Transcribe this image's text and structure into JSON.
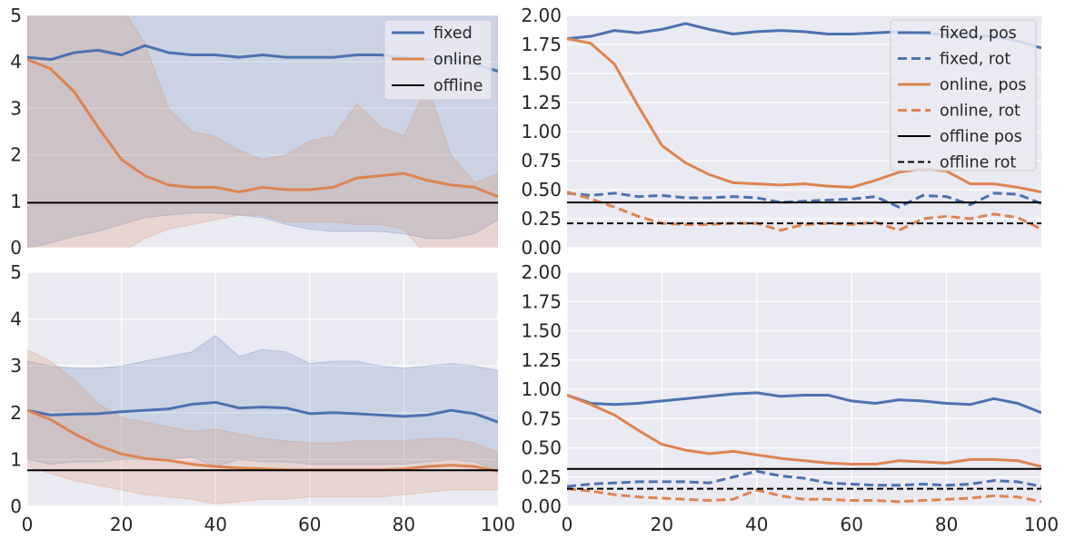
{
  "chart_data": [
    {
      "type": "line",
      "panel": "top-left",
      "xlim": [
        0,
        100
      ],
      "ylim": [
        0,
        5
      ],
      "yticks": [
        "0",
        "1",
        "2",
        "3",
        "4",
        "5"
      ],
      "xticks": [],
      "grid": true,
      "legend_position": "top-right",
      "series": [
        {
          "name": "fixed",
          "color": "#4c72b0",
          "style": "solid",
          "x": [
            0,
            5,
            10,
            15,
            20,
            25,
            30,
            35,
            40,
            45,
            50,
            55,
            60,
            65,
            70,
            75,
            80,
            85,
            90,
            95,
            100
          ],
          "values": [
            4.1,
            4.05,
            4.2,
            4.25,
            4.15,
            4.35,
            4.2,
            4.15,
            4.15,
            4.1,
            4.15,
            4.1,
            4.1,
            4.1,
            4.15,
            4.15,
            4.1,
            4.05,
            4.05,
            3.95,
            3.8
          ],
          "band_upper": [
            5.2,
            5.2,
            5.2,
            5.2,
            5.2,
            5.2,
            5.2,
            5.2,
            5.2,
            5.2,
            5.2,
            5.2,
            5.2,
            5.2,
            5.2,
            5.2,
            5.2,
            5.2,
            5.2,
            5.2,
            5.2
          ],
          "band_lower": [
            0.0,
            0.1,
            0.25,
            0.35,
            0.5,
            0.65,
            0.7,
            0.75,
            0.75,
            0.7,
            0.65,
            0.5,
            0.4,
            0.35,
            0.35,
            0.35,
            0.3,
            0.2,
            0.2,
            0.3,
            0.6
          ]
        },
        {
          "name": "online",
          "color": "#dd8452",
          "style": "solid",
          "x": [
            0,
            5,
            10,
            15,
            20,
            25,
            30,
            35,
            40,
            45,
            50,
            55,
            60,
            65,
            70,
            75,
            80,
            85,
            90,
            95,
            100
          ],
          "values": [
            4.05,
            3.85,
            3.35,
            2.6,
            1.9,
            1.55,
            1.35,
            1.3,
            1.3,
            1.2,
            1.3,
            1.25,
            1.25,
            1.3,
            1.5,
            1.55,
            1.6,
            1.45,
            1.35,
            1.3,
            1.1
          ],
          "band_upper": [
            5.2,
            5.2,
            5.2,
            5.2,
            5.2,
            4.4,
            3.0,
            2.5,
            2.4,
            2.1,
            1.9,
            2.0,
            2.3,
            2.4,
            3.1,
            2.6,
            2.4,
            3.5,
            2.0,
            1.4,
            1.6
          ],
          "band_lower": [
            -0.2,
            -0.2,
            -0.2,
            -0.2,
            -0.1,
            0.2,
            0.4,
            0.5,
            0.6,
            0.7,
            0.7,
            0.55,
            0.55,
            0.55,
            0.5,
            0.5,
            0.4,
            -0.2,
            -0.2,
            -0.2,
            -0.2
          ]
        },
        {
          "name": "offline",
          "color": "#000000",
          "style": "solid",
          "x": [
            0,
            100
          ],
          "values": [
            0.97,
            0.97
          ]
        }
      ]
    },
    {
      "type": "line",
      "panel": "top-right",
      "xlim": [
        0,
        100
      ],
      "ylim": [
        0,
        2
      ],
      "yticks": [
        "0.00",
        "0.25",
        "0.50",
        "0.75",
        "1.00",
        "1.25",
        "1.50",
        "1.75",
        "2.00"
      ],
      "xticks": [],
      "grid": true,
      "legend_position": "top-right",
      "series": [
        {
          "name": "fixed, pos",
          "color": "#4c72b0",
          "style": "solid",
          "x": [
            0,
            5,
            10,
            15,
            20,
            25,
            30,
            35,
            40,
            45,
            50,
            55,
            60,
            65,
            70,
            75,
            80,
            85,
            90,
            95,
            100
          ],
          "values": [
            1.8,
            1.82,
            1.87,
            1.85,
            1.88,
            1.93,
            1.88,
            1.84,
            1.86,
            1.87,
            1.86,
            1.84,
            1.84,
            1.85,
            1.86,
            1.85,
            1.83,
            1.82,
            1.82,
            1.78,
            1.72
          ]
        },
        {
          "name": "fixed, rot",
          "color": "#4c72b0",
          "style": "dashed",
          "x": [
            0,
            5,
            10,
            15,
            20,
            25,
            30,
            35,
            40,
            45,
            50,
            55,
            60,
            65,
            70,
            75,
            80,
            85,
            90,
            95,
            100
          ],
          "values": [
            0.47,
            0.45,
            0.47,
            0.44,
            0.45,
            0.43,
            0.43,
            0.44,
            0.43,
            0.39,
            0.4,
            0.41,
            0.42,
            0.44,
            0.35,
            0.45,
            0.44,
            0.37,
            0.47,
            0.46,
            0.38
          ]
        },
        {
          "name": "online, pos",
          "color": "#dd8452",
          "style": "solid",
          "x": [
            0,
            5,
            10,
            15,
            20,
            25,
            30,
            35,
            40,
            45,
            50,
            55,
            60,
            65,
            70,
            75,
            80,
            85,
            90,
            95,
            100
          ],
          "values": [
            1.8,
            1.76,
            1.58,
            1.22,
            0.88,
            0.73,
            0.63,
            0.56,
            0.55,
            0.54,
            0.55,
            0.53,
            0.52,
            0.58,
            0.65,
            0.68,
            0.66,
            0.55,
            0.55,
            0.52,
            0.48
          ]
        },
        {
          "name": "online, rot",
          "color": "#dd8452",
          "style": "dashed",
          "x": [
            0,
            5,
            10,
            15,
            20,
            25,
            30,
            35,
            40,
            45,
            50,
            55,
            60,
            65,
            70,
            75,
            80,
            85,
            90,
            95,
            100
          ],
          "values": [
            0.48,
            0.42,
            0.35,
            0.27,
            0.21,
            0.2,
            0.2,
            0.21,
            0.21,
            0.15,
            0.2,
            0.21,
            0.2,
            0.22,
            0.15,
            0.25,
            0.27,
            0.25,
            0.29,
            0.26,
            0.16
          ]
        },
        {
          "name": "offline pos",
          "color": "#000000",
          "style": "solid",
          "x": [
            0,
            100
          ],
          "values": [
            0.39,
            0.39
          ]
        },
        {
          "name": "offline rot",
          "color": "#000000",
          "style": "dashed",
          "x": [
            0,
            100
          ],
          "values": [
            0.21,
            0.21
          ]
        }
      ]
    },
    {
      "type": "line",
      "panel": "bottom-left",
      "xlim": [
        0,
        100
      ],
      "ylim": [
        0,
        5
      ],
      "yticks": [
        "0",
        "1",
        "2",
        "3",
        "4",
        "5"
      ],
      "xticks": [
        "0",
        "20",
        "40",
        "60",
        "80",
        "100"
      ],
      "grid": true,
      "series": [
        {
          "name": "fixed",
          "color": "#4c72b0",
          "style": "solid",
          "x": [
            0,
            5,
            10,
            15,
            20,
            25,
            30,
            35,
            40,
            45,
            50,
            55,
            60,
            65,
            70,
            75,
            80,
            85,
            90,
            95,
            100
          ],
          "values": [
            2.05,
            1.95,
            1.97,
            1.98,
            2.02,
            2.05,
            2.08,
            2.18,
            2.22,
            2.1,
            2.12,
            2.1,
            1.98,
            2.0,
            1.98,
            1.95,
            1.92,
            1.95,
            2.05,
            1.98,
            1.8
          ],
          "band_upper": [
            3.1,
            3.0,
            2.95,
            2.95,
            3.0,
            3.1,
            3.2,
            3.3,
            3.65,
            3.2,
            3.35,
            3.3,
            3.05,
            3.1,
            3.1,
            3.0,
            2.95,
            3.0,
            3.05,
            3.0,
            2.9
          ],
          "band_lower": [
            1.0,
            0.9,
            0.95,
            0.95,
            1.0,
            1.0,
            1.0,
            1.05,
            0.85,
            1.0,
            0.95,
            0.95,
            0.9,
            0.9,
            0.9,
            0.9,
            0.9,
            0.95,
            1.0,
            0.95,
            0.75
          ]
        },
        {
          "name": "online",
          "color": "#dd8452",
          "style": "solid",
          "x": [
            0,
            5,
            10,
            15,
            20,
            25,
            30,
            35,
            40,
            45,
            50,
            55,
            60,
            65,
            70,
            75,
            80,
            85,
            90,
            95,
            100
          ],
          "values": [
            2.05,
            1.85,
            1.55,
            1.3,
            1.12,
            1.02,
            0.98,
            0.9,
            0.85,
            0.82,
            0.8,
            0.78,
            0.78,
            0.78,
            0.78,
            0.78,
            0.8,
            0.85,
            0.88,
            0.85,
            0.75
          ],
          "band_upper": [
            3.35,
            3.1,
            2.7,
            2.2,
            1.9,
            1.8,
            1.7,
            1.6,
            1.65,
            1.55,
            1.45,
            1.4,
            1.35,
            1.35,
            1.4,
            1.4,
            1.4,
            1.45,
            1.45,
            1.35,
            1.15
          ],
          "band_lower": [
            0.85,
            0.7,
            0.55,
            0.45,
            0.35,
            0.25,
            0.2,
            0.15,
            0.05,
            0.1,
            0.15,
            0.15,
            0.2,
            0.2,
            0.2,
            0.2,
            0.25,
            0.3,
            0.35,
            0.35,
            0.35
          ]
        },
        {
          "name": "offline",
          "color": "#000000",
          "style": "solid",
          "x": [
            0,
            100
          ],
          "values": [
            0.77,
            0.77
          ]
        }
      ]
    },
    {
      "type": "line",
      "panel": "bottom-right",
      "xlim": [
        0,
        100
      ],
      "ylim": [
        0,
        2
      ],
      "yticks": [
        "0.00",
        "0.25",
        "0.50",
        "0.75",
        "1.00",
        "1.25",
        "1.50",
        "1.75",
        "2.00"
      ],
      "xticks": [
        "0",
        "20",
        "40",
        "60",
        "80",
        "100"
      ],
      "grid": true,
      "series": [
        {
          "name": "fixed, pos",
          "color": "#4c72b0",
          "style": "solid",
          "x": [
            0,
            5,
            10,
            15,
            20,
            25,
            30,
            35,
            40,
            45,
            50,
            55,
            60,
            65,
            70,
            75,
            80,
            85,
            90,
            95,
            100
          ],
          "values": [
            0.95,
            0.88,
            0.87,
            0.88,
            0.9,
            0.92,
            0.94,
            0.96,
            0.97,
            0.94,
            0.95,
            0.95,
            0.9,
            0.88,
            0.91,
            0.9,
            0.88,
            0.87,
            0.92,
            0.88,
            0.8
          ]
        },
        {
          "name": "fixed, rot",
          "color": "#4c72b0",
          "style": "dashed",
          "x": [
            0,
            5,
            10,
            15,
            20,
            25,
            30,
            35,
            40,
            45,
            50,
            55,
            60,
            65,
            70,
            75,
            80,
            85,
            90,
            95,
            100
          ],
          "values": [
            0.17,
            0.19,
            0.2,
            0.21,
            0.21,
            0.21,
            0.2,
            0.25,
            0.3,
            0.26,
            0.24,
            0.2,
            0.19,
            0.18,
            0.18,
            0.19,
            0.18,
            0.19,
            0.22,
            0.21,
            0.17
          ]
        },
        {
          "name": "online, pos",
          "color": "#dd8452",
          "style": "solid",
          "x": [
            0,
            5,
            10,
            15,
            20,
            25,
            30,
            35,
            40,
            45,
            50,
            55,
            60,
            65,
            70,
            75,
            80,
            85,
            90,
            95,
            100
          ],
          "values": [
            0.95,
            0.87,
            0.78,
            0.65,
            0.53,
            0.48,
            0.45,
            0.47,
            0.44,
            0.41,
            0.39,
            0.37,
            0.36,
            0.36,
            0.39,
            0.38,
            0.37,
            0.4,
            0.4,
            0.39,
            0.34
          ]
        },
        {
          "name": "online, rot",
          "color": "#dd8452",
          "style": "dashed",
          "x": [
            0,
            5,
            10,
            15,
            20,
            25,
            30,
            35,
            40,
            45,
            50,
            55,
            60,
            65,
            70,
            75,
            80,
            85,
            90,
            95,
            100
          ],
          "values": [
            0.15,
            0.13,
            0.1,
            0.08,
            0.07,
            0.06,
            0.05,
            0.06,
            0.14,
            0.09,
            0.06,
            0.06,
            0.05,
            0.05,
            0.04,
            0.05,
            0.06,
            0.07,
            0.09,
            0.08,
            0.04
          ]
        },
        {
          "name": "offline pos",
          "color": "#000000",
          "style": "solid",
          "x": [
            0,
            100
          ],
          "values": [
            0.32,
            0.32
          ]
        },
        {
          "name": "offline rot",
          "color": "#000000",
          "style": "dashed",
          "x": [
            0,
            100
          ],
          "values": [
            0.15,
            0.15
          ]
        }
      ]
    }
  ]
}
